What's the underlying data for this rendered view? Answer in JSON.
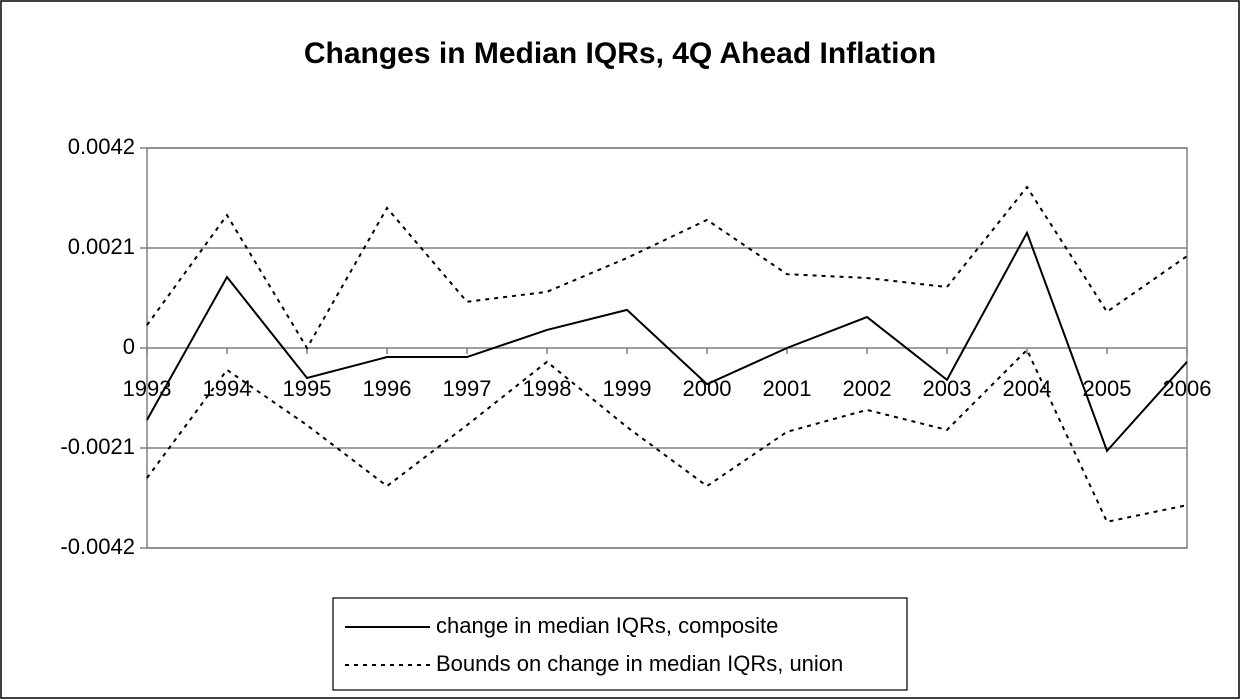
{
  "chart_data": {
    "type": "line",
    "title": "Changes in Median IQRs, 4Q Ahead Inflation",
    "categories": [
      "1993",
      "1994",
      "1995",
      "1996",
      "1997",
      "1998",
      "1999",
      "2000",
      "2001",
      "2002",
      "2003",
      "2004",
      "2005",
      "2006"
    ],
    "series": [
      {
        "name": "change in median IQRs, composite",
        "color": "#000000",
        "style": "solid",
        "values": [
          -0.00151,
          0.00149,
          -0.00063,
          -0.00019,
          -0.00019,
          0.00038,
          0.0008,
          -0.00076,
          0,
          0.00065,
          -0.00067,
          0.00242,
          -0.00216,
          -0.00029
        ]
      },
      {
        "name": "Bounds on change in median IQRs, union",
        "color": "#000000",
        "style": "dotted",
        "values": [
          0.00048,
          0.00279,
          0,
          0.00294,
          0.00097,
          0.00118,
          0.00189,
          0.00269,
          0.00155,
          0.00147,
          0.00128,
          0.00338,
          0.00076,
          0.00193
        ],
        "lower": [
          -0.00273,
          -0.00046,
          -0.00162,
          -0.0029,
          -0.00162,
          -0.00029,
          -0.00166,
          -0.0029,
          -0.00176,
          -0.0013,
          -0.00172,
          -4e-05,
          -0.00365,
          -0.0033
        ]
      }
    ],
    "ylim": [
      -0.0042,
      0.0042
    ],
    "yticks": [
      -0.0042,
      -0.0021,
      0,
      0.0021,
      0.0042
    ],
    "grid": true
  }
}
